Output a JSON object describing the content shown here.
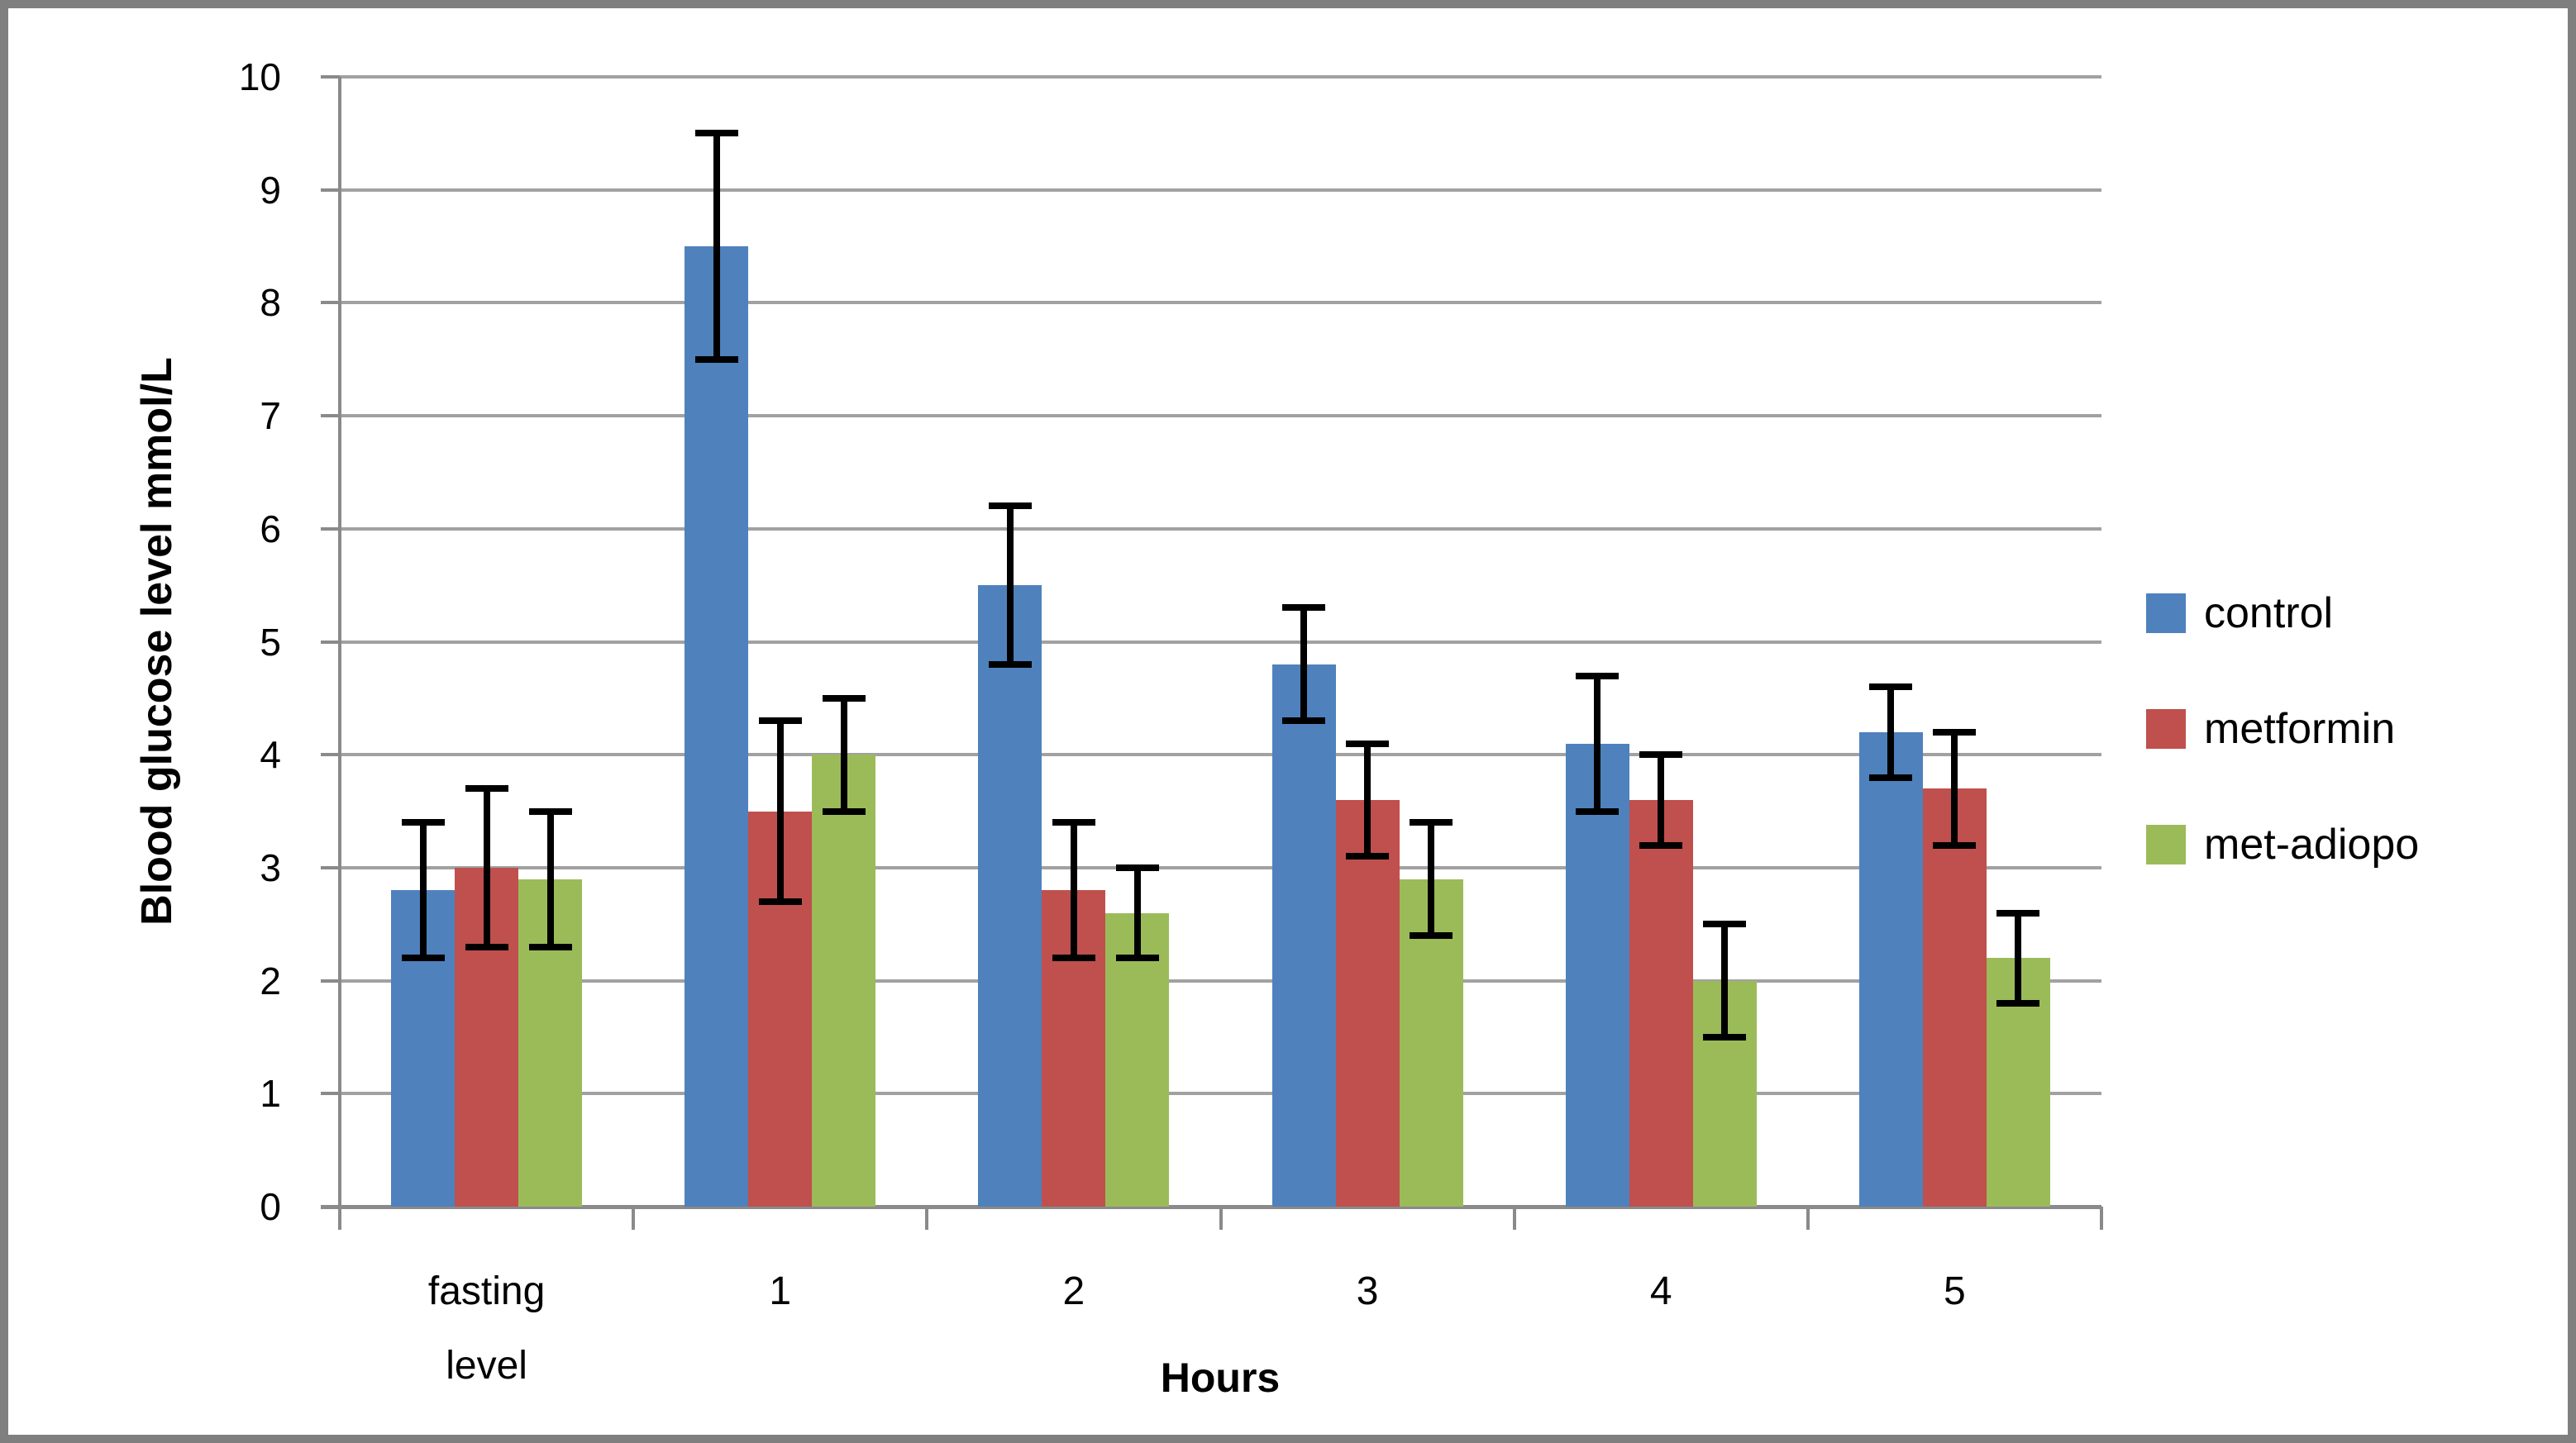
{
  "chart_data": {
    "type": "bar",
    "xlabel": "Hours",
    "ylabel": "Blood glucose level mmol/L",
    "categories": [
      "fasting level",
      "1",
      "2",
      "3",
      "4",
      "5"
    ],
    "series": [
      {
        "name": "control",
        "color": "#4F81BD",
        "values": [
          2.8,
          8.5,
          5.5,
          4.8,
          4.1,
          4.2
        ],
        "errors": [
          0.6,
          1.0,
          0.7,
          0.5,
          0.6,
          0.4
        ]
      },
      {
        "name": "metformin",
        "color": "#C0504D",
        "values": [
          3.0,
          3.5,
          2.8,
          3.6,
          3.6,
          3.7
        ],
        "errors": [
          0.7,
          0.8,
          0.6,
          0.5,
          0.4,
          0.5
        ]
      },
      {
        "name": "met-adiopo",
        "color": "#9BBB59",
        "values": [
          2.9,
          4.0,
          2.6,
          2.9,
          2.0,
          2.2
        ],
        "errors": [
          0.6,
          0.5,
          0.4,
          0.5,
          0.5,
          0.4
        ]
      }
    ],
    "ylim": [
      0,
      10
    ],
    "yticks": [
      0,
      1,
      2,
      3,
      4,
      5,
      6,
      7,
      8,
      9,
      10
    ],
    "grid": "horizontal",
    "error_bars": true,
    "legend_position": "right"
  },
  "colors": {
    "gridline": "#A1A1A1",
    "axis": "#8A8A8A",
    "frame_border": "#7F7F7F",
    "error_bar": "#000000",
    "text": "#000000",
    "background": "#FFFFFF"
  }
}
